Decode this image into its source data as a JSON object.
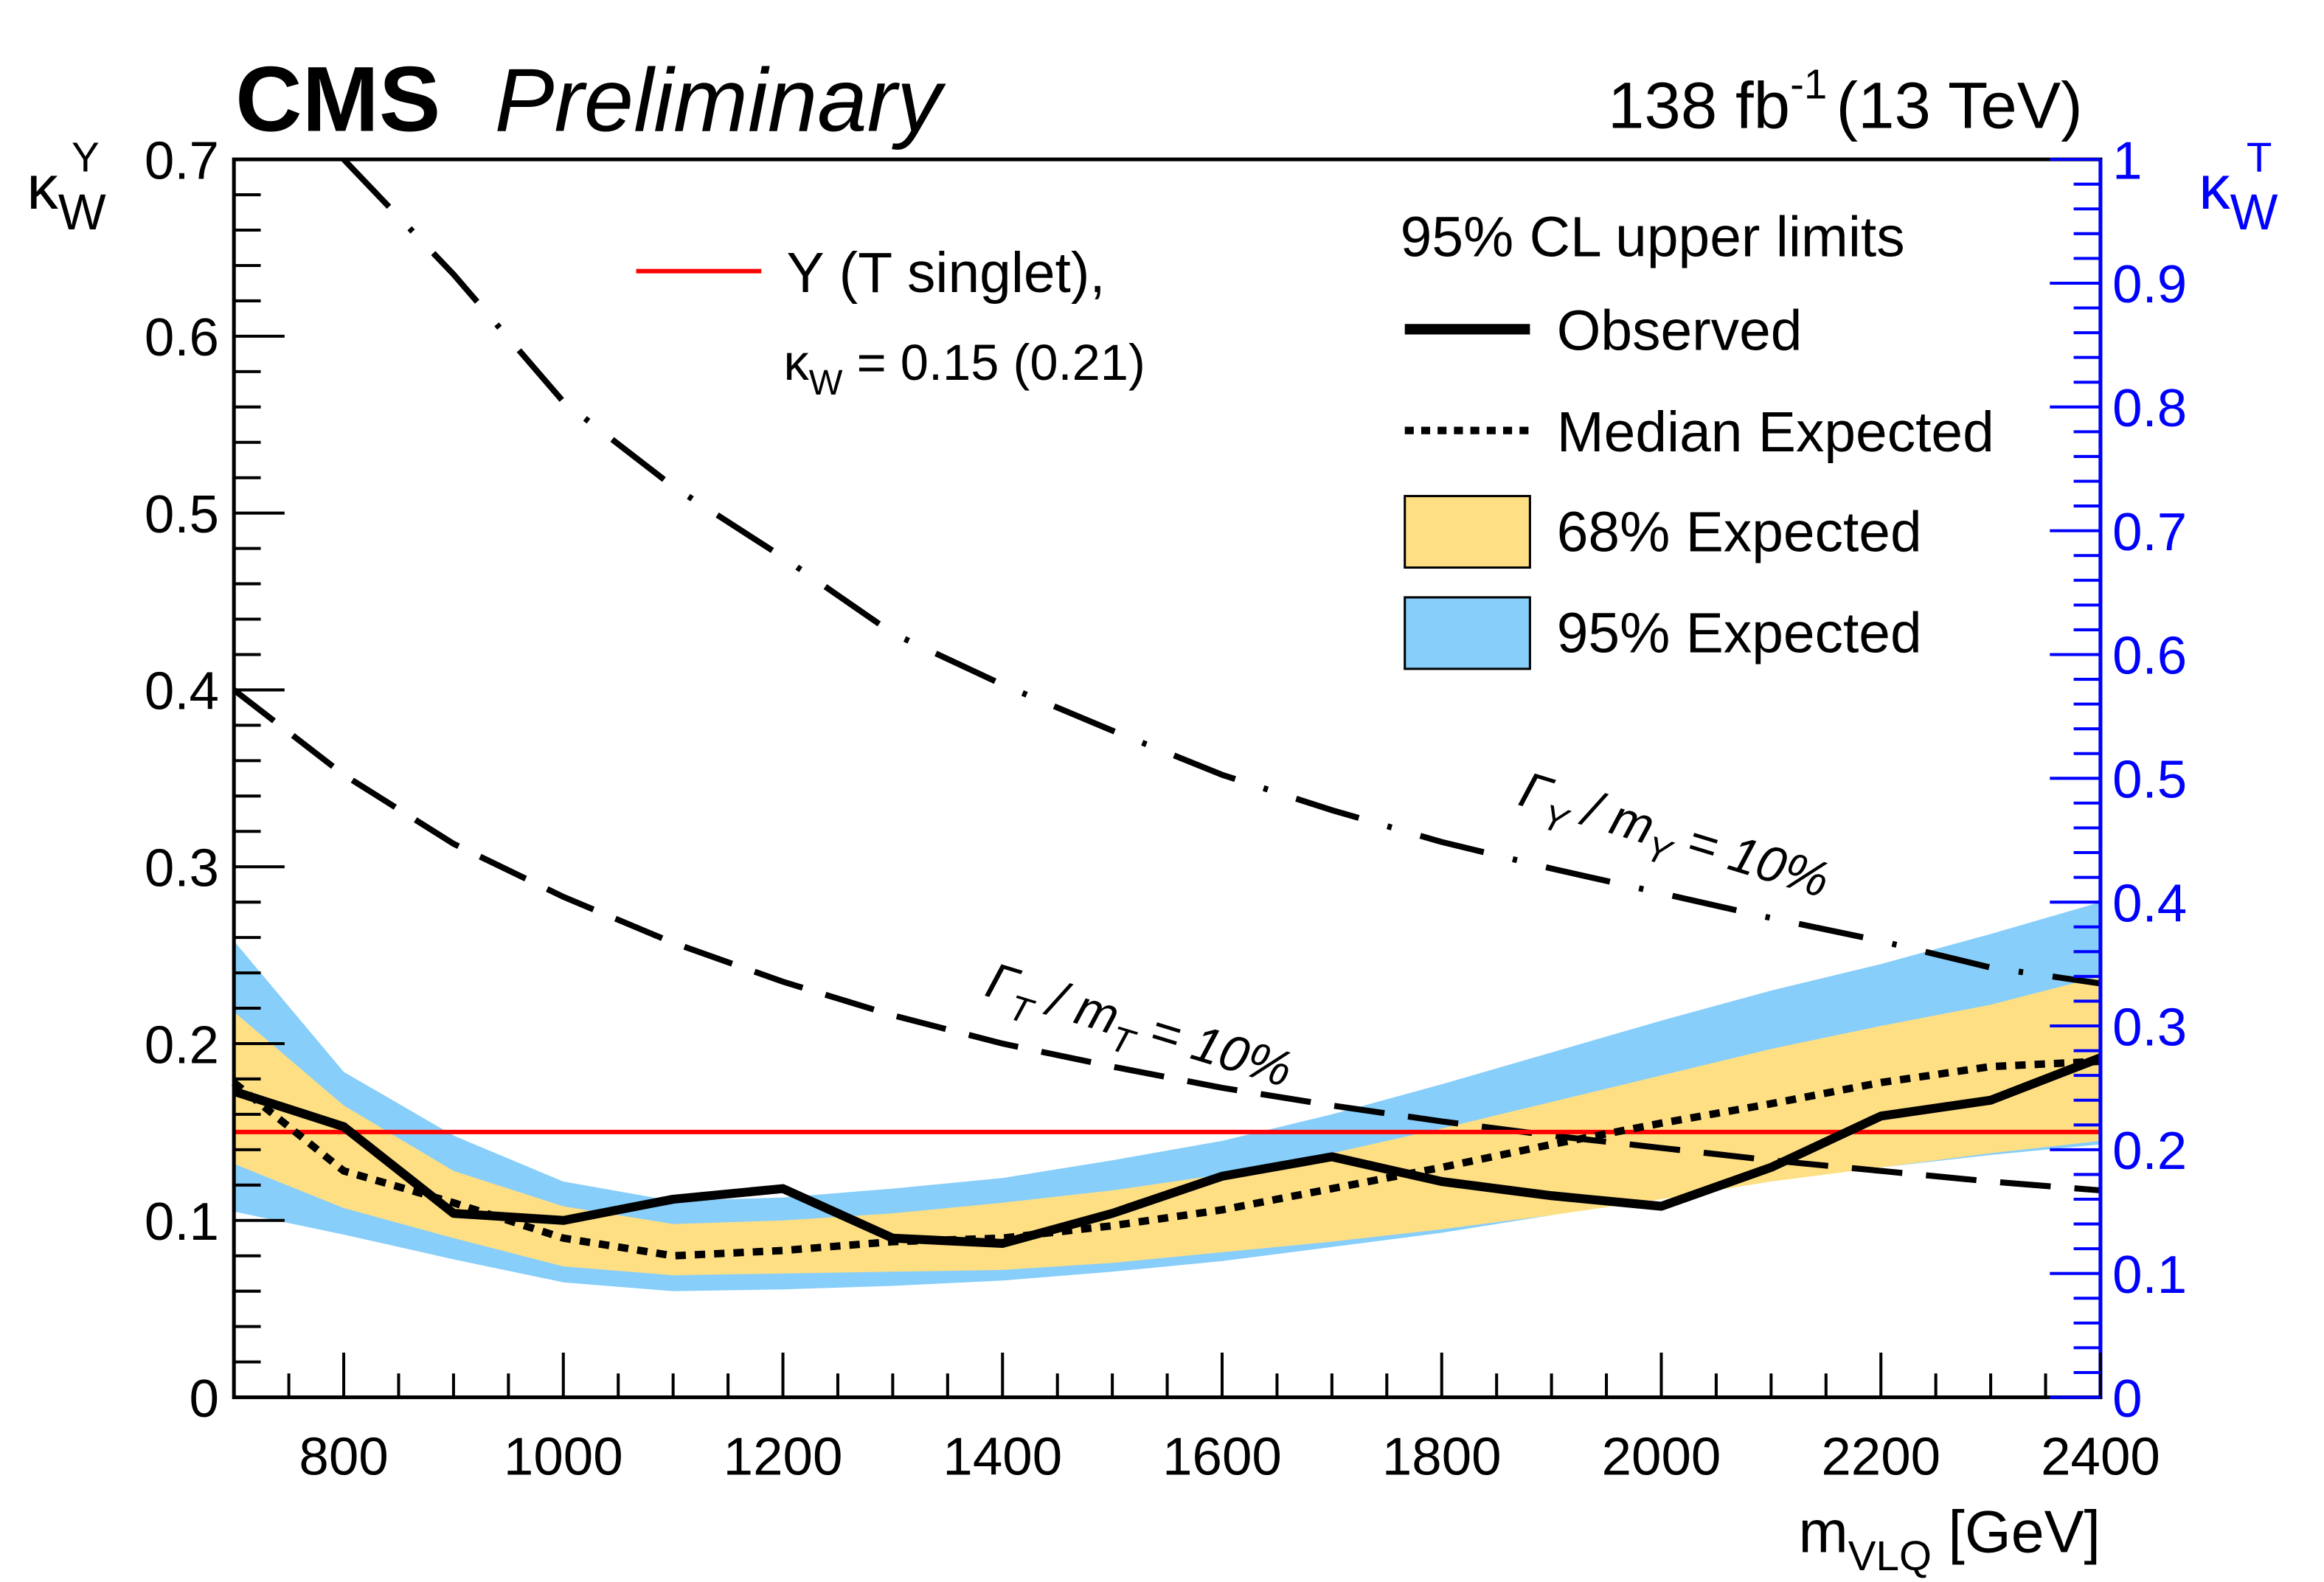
{
  "header": {
    "experiment": "CMS",
    "status": "Preliminary",
    "lumi_value": "138 fb",
    "lumi_exp": "-1",
    "energy": "(13 TeV)"
  },
  "colors": {
    "band68": "#fedf84",
    "band95": "#87cefa",
    "reference": "#ff0000",
    "right_axis": "#0000ff",
    "lines": "#000000"
  },
  "legend": {
    "title": "95% CL upper limits",
    "observed": "Observed",
    "expected": "Median Expected",
    "band68": "68% Expected",
    "band95": "95% Expected",
    "ref_label": "Y (T singlet),",
    "ref_kappa": "κ",
    "ref_kappa_sub": "W",
    "ref_value": " = 0.15 (0.21)"
  },
  "annotations": {
    "gamma_t": {
      "g": "Γ",
      "gsub": "T",
      "m": " / m",
      "msub": "T",
      "rest": " = 10%"
    },
    "gamma_y": {
      "g": "Γ",
      "gsub": "Y",
      "m": " / m",
      "msub": "Y",
      "rest": " = 10%"
    }
  },
  "chart_data": {
    "type": "line",
    "xlabel": {
      "main": "m",
      "sub": "VLQ",
      "unit": " [GeV]"
    },
    "ylabel": {
      "main": "κ",
      "sub": "W",
      "sup": "Y"
    },
    "y2label": {
      "main": "κ",
      "sub": "W",
      "sup": "T"
    },
    "xlim": [
      700,
      2400
    ],
    "ylim": [
      0,
      0.7
    ],
    "y2lim": [
      0,
      1
    ],
    "xticks": [
      "800",
      "1000",
      "1200",
      "1400",
      "1600",
      "1800",
      "2000",
      "2200",
      "2400"
    ],
    "yticks": [
      "0",
      "0.1",
      "0.2",
      "0.3",
      "0.4",
      "0.5",
      "0.6",
      "0.7"
    ],
    "y2ticks": [
      "0",
      "0.1",
      "0.2",
      "0.3",
      "0.4",
      "0.5",
      "0.6",
      "0.7",
      "0.8",
      "0.9",
      "1"
    ],
    "x": [
      700,
      800,
      900,
      1000,
      1100,
      1200,
      1300,
      1400,
      1500,
      1600,
      1700,
      1800,
      1900,
      2000,
      2100,
      2200,
      2300,
      2400
    ],
    "observed": [
      0.173,
      0.153,
      0.104,
      0.1,
      0.112,
      0.118,
      0.09,
      0.087,
      0.104,
      0.125,
      0.136,
      0.122,
      0.114,
      0.108,
      0.13,
      0.159,
      0.168,
      0.192
    ],
    "expected": [
      0.178,
      0.128,
      0.11,
      0.09,
      0.08,
      0.083,
      0.088,
      0.09,
      0.097,
      0.106,
      0.118,
      0.13,
      0.143,
      0.155,
      0.166,
      0.178,
      0.187,
      0.19
    ],
    "band68_low": [
      0.132,
      0.107,
      0.09,
      0.074,
      0.069,
      0.07,
      0.071,
      0.072,
      0.076,
      0.082,
      0.088,
      0.095,
      0.103,
      0.112,
      0.122,
      0.13,
      0.138,
      0.145
    ],
    "band68_high": [
      0.218,
      0.165,
      0.128,
      0.108,
      0.098,
      0.1,
      0.104,
      0.11,
      0.117,
      0.126,
      0.138,
      0.152,
      0.167,
      0.182,
      0.197,
      0.21,
      0.222,
      0.238
    ],
    "band95_low": [
      0.105,
      0.092,
      0.078,
      0.065,
      0.06,
      0.061,
      0.063,
      0.066,
      0.071,
      0.077,
      0.085,
      0.093,
      0.103,
      0.113,
      0.124,
      0.13,
      0.137,
      0.143
    ],
    "band95_high": [
      0.258,
      0.184,
      0.148,
      0.122,
      0.111,
      0.113,
      0.118,
      0.124,
      0.134,
      0.145,
      0.16,
      0.177,
      0.195,
      0.213,
      0.23,
      0.245,
      0.262,
      0.28
    ],
    "reference_y": 0.15,
    "width_T_10pct": [
      0.4,
      0.352,
      0.313,
      0.283,
      0.257,
      0.235,
      0.216,
      0.2,
      0.187,
      0.175,
      0.165,
      0.156,
      0.148,
      0.141,
      0.134,
      0.128,
      0.122,
      0.117
    ],
    "width_Y_10pct_x": [
      800,
      900,
      1000,
      1100,
      1200,
      1300,
      1400,
      1500,
      1600,
      1700,
      1800,
      1900,
      2000,
      2100,
      2200,
      2300,
      2400
    ],
    "width_Y_10pct": [
      0.7,
      0.635,
      0.563,
      0.515,
      0.475,
      0.432,
      0.403,
      0.377,
      0.352,
      0.332,
      0.314,
      0.299,
      0.285,
      0.271,
      0.258,
      0.243,
      0.234
    ],
    "legend_placement": "top-right",
    "grid": false
  }
}
